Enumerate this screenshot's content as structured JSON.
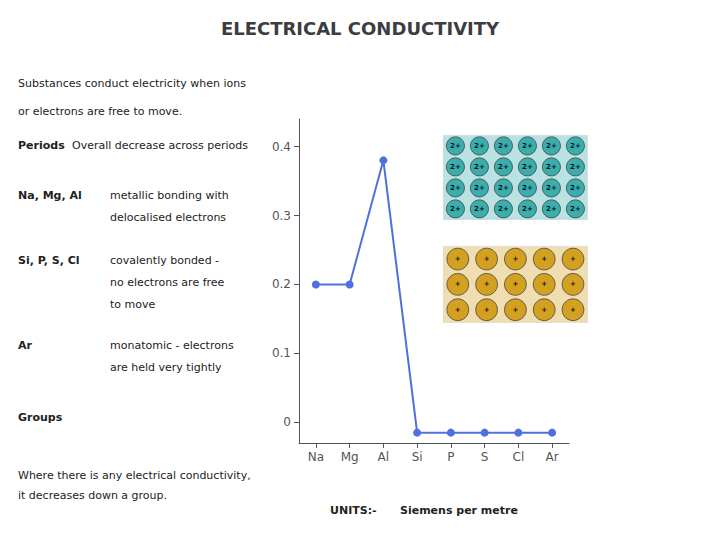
{
  "chart_data": {
    "type": "line",
    "title": "ELECTRICAL CONDUCTIVITY",
    "categories": [
      "Na",
      "Mg",
      "Al",
      "Si",
      "P",
      "S",
      "Cl",
      "Ar"
    ],
    "values": [
      0.2,
      0.2,
      0.38,
      -0.015,
      -0.015,
      -0.015,
      -0.015,
      -0.015
    ],
    "ylim": [
      -0.03,
      0.44
    ],
    "yticks": [
      0,
      0.1,
      0.2,
      0.3,
      0.4
    ],
    "grid": false,
    "marker": "circle",
    "annotations": [
      "Substances conduct electricity when ions",
      "or electrons are free to move.",
      "Periods",
      "Overall decrease across periods",
      "Na, Mg, Al",
      "metallic bonding with",
      "delocalised electrons",
      "Si, P, S, Cl",
      "covalently bonded -",
      "no electrons are free",
      "to move",
      "Ar",
      "monatomic - electrons",
      "are held very tightly",
      "Groups",
      "Where there is any electrical conductivity,",
      "it decreases down a group.",
      "UNITS:-",
      "Siemens per metre"
    ],
    "atom_grids": [
      {
        "label": "2+",
        "rows": 4,
        "cols": 6,
        "color": "#3aadad"
      },
      {
        "label": "+",
        "rows": 3,
        "cols": 5,
        "color": "#d4a020"
      }
    ]
  }
}
